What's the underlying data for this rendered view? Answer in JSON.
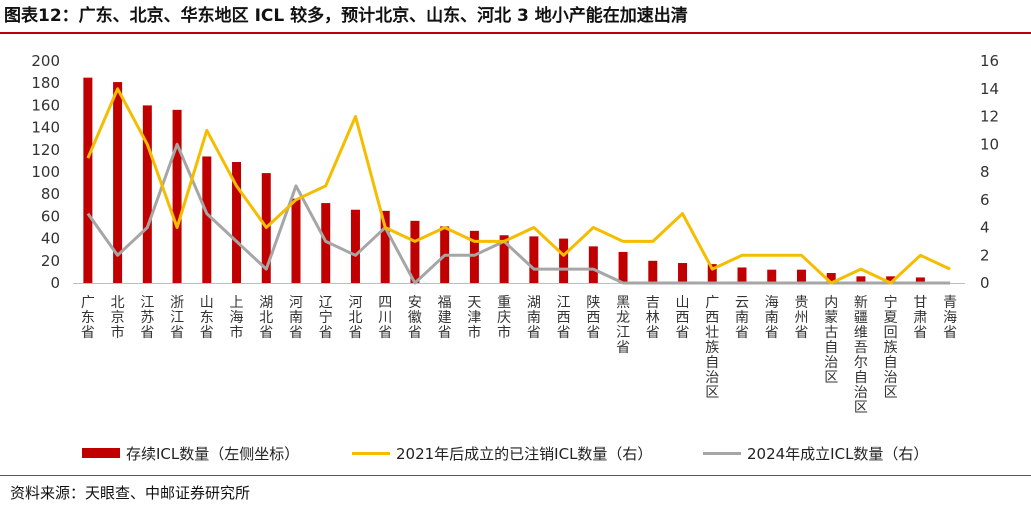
{
  "title": "图表12：广东、北京、华东地区 ICL 较多，预计北京、山东、河北 3 地小产能在加速出清",
  "source": "资料来源：天眼查、中邮证券研究所",
  "chart_data": {
    "type": "bar",
    "categories": [
      "广东省",
      "北京市",
      "江苏省",
      "浙江省",
      "山东省",
      "上海市",
      "湖北省",
      "河南省",
      "辽宁省",
      "河北省",
      "四川省",
      "安徽省",
      "福建省",
      "天津市",
      "重庆市",
      "湖南省",
      "江西省",
      "陕西省",
      "黑龙江省",
      "吉林省",
      "山西省",
      "广西壮族自治区",
      "云南省",
      "海南省",
      "贵州省",
      "内蒙古自治区",
      "新疆维吾尔自治区",
      "宁夏回族自治区",
      "甘肃省",
      "青海省"
    ],
    "series": [
      {
        "name": "存续ICL数量（左侧坐标）",
        "type": "bar",
        "axis": "left",
        "color": "#c00000",
        "values": [
          185,
          181,
          160,
          156,
          114,
          109,
          99,
          76,
          72,
          66,
          65,
          56,
          51,
          47,
          43,
          42,
          40,
          33,
          28,
          20,
          18,
          17,
          14,
          12,
          12,
          9,
          6,
          6,
          5,
          0
        ]
      },
      {
        "name": "2021年后成立的已注销ICL数量（右）",
        "type": "line",
        "axis": "right",
        "color": "#f5bd00",
        "values": [
          9,
          14,
          10,
          4,
          11,
          7,
          4,
          6,
          7,
          12,
          4,
          3,
          4,
          3,
          3,
          4,
          2,
          4,
          3,
          3,
          5,
          1,
          2,
          2,
          2,
          0,
          1,
          0,
          2,
          1
        ]
      },
      {
        "name": "2024年成立ICL数量（右）",
        "type": "line",
        "axis": "right",
        "color": "#a6a6a6",
        "values": [
          5,
          2,
          4,
          10,
          5,
          3,
          1,
          7,
          3,
          2,
          4,
          0,
          2,
          2,
          3,
          1,
          1,
          1,
          0,
          0,
          0,
          0,
          0,
          0,
          0,
          0,
          0,
          0,
          0,
          0
        ]
      }
    ],
    "left_axis": {
      "min": 0,
      "max": 200,
      "ticks": [
        0,
        20,
        40,
        60,
        80,
        100,
        120,
        140,
        160,
        180,
        200
      ]
    },
    "right_axis": {
      "min": 0,
      "max": 16,
      "ticks": [
        0,
        2,
        4,
        6,
        8,
        10,
        12,
        14,
        16
      ]
    },
    "grid": false,
    "legend_position": "bottom"
  }
}
